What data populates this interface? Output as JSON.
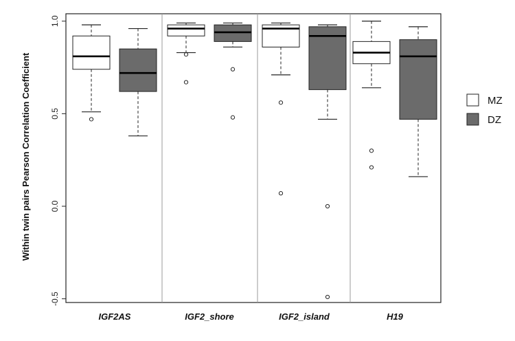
{
  "chart_data": {
    "type": "boxplot",
    "title": "",
    "xlabel": "",
    "ylabel": "Within twin pairs Pearson Correlation Coefficient",
    "ylim": [
      -0.52,
      1.04
    ],
    "yticks": [
      -0.5,
      0.0,
      0.5,
      1.0
    ],
    "ytick_labels": [
      "-0.5",
      "0.0",
      "0.5",
      "1.0"
    ],
    "grid": false,
    "legend_position": "right",
    "categories": [
      "IGF2AS",
      "IGF2_shore",
      "IGF2_island",
      "H19"
    ],
    "series": [
      {
        "name": "MZ",
        "color": "#ffffff",
        "boxes": [
          {
            "whisker_low": 0.51,
            "q1": 0.74,
            "median": 0.81,
            "q3": 0.92,
            "whisker_high": 0.98,
            "outliers": [
              0.47
            ]
          },
          {
            "whisker_low": 0.83,
            "q1": 0.92,
            "median": 0.96,
            "q3": 0.98,
            "whisker_high": 0.99,
            "outliers": [
              0.82,
              0.67
            ]
          },
          {
            "whisker_low": 0.71,
            "q1": 0.86,
            "median": 0.96,
            "q3": 0.98,
            "whisker_high": 0.99,
            "outliers": [
              0.56,
              0.07
            ]
          },
          {
            "whisker_low": 0.64,
            "q1": 0.77,
            "median": 0.83,
            "q3": 0.89,
            "whisker_high": 1.0,
            "outliers": [
              0.3,
              0.21
            ]
          }
        ]
      },
      {
        "name": "DZ",
        "color": "#6b6b6b",
        "boxes": [
          {
            "whisker_low": 0.38,
            "q1": 0.62,
            "median": 0.72,
            "q3": 0.85,
            "whisker_high": 0.96,
            "outliers": []
          },
          {
            "whisker_low": 0.86,
            "q1": 0.89,
            "median": 0.94,
            "q3": 0.98,
            "whisker_high": 0.99,
            "outliers": [
              0.74,
              0.48
            ]
          },
          {
            "whisker_low": 0.47,
            "q1": 0.63,
            "median": 0.92,
            "q3": 0.97,
            "whisker_high": 0.98,
            "outliers": [
              0.0,
              -0.49
            ]
          },
          {
            "whisker_low": 0.16,
            "q1": 0.47,
            "median": 0.81,
            "q3": 0.9,
            "whisker_high": 0.97,
            "outliers": []
          }
        ]
      }
    ]
  }
}
